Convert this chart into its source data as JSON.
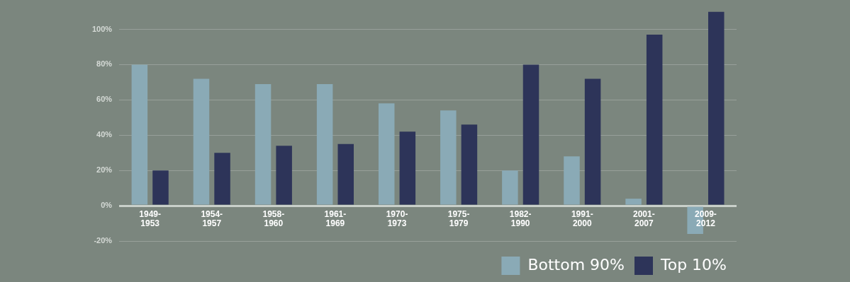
{
  "chart_data": {
    "type": "bar",
    "categories": [
      "1949-1953",
      "1954-1957",
      "1958-1960",
      "1961-1969",
      "1970-1973",
      "1975-1979",
      "1982-1990",
      "1991-2000",
      "2001-2007",
      "2009-2012"
    ],
    "series": [
      {
        "name": "Bottom 90%",
        "color": "#8aaab6",
        "values": [
          80,
          72,
          69,
          69,
          58,
          54,
          20,
          28,
          4,
          -16
        ]
      },
      {
        "name": "Top 10%",
        "color": "#2d3459",
        "values": [
          20,
          30,
          34,
          35,
          42,
          46,
          80,
          72,
          97,
          110
        ]
      }
    ],
    "ylim": [
      -20,
      110
    ],
    "yticks": [
      {
        "value": -20,
        "label": "-20%"
      },
      {
        "value": 0,
        "label": "0%"
      },
      {
        "value": 20,
        "label": "20%"
      },
      {
        "value": 40,
        "label": "40%"
      },
      {
        "value": 60,
        "label": "60%"
      },
      {
        "value": 80,
        "label": "80%"
      },
      {
        "value": 100,
        "label": "100%"
      }
    ],
    "grid": "y",
    "legend": "bottom right"
  }
}
